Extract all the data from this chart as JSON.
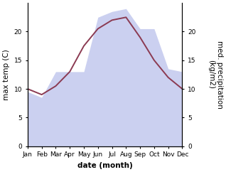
{
  "months": [
    "Jan",
    "Feb",
    "Mar",
    "Apr",
    "May",
    "Jun",
    "Jul",
    "Aug",
    "Sep",
    "Oct",
    "Nov",
    "Dec"
  ],
  "month_indices": [
    1,
    2,
    3,
    4,
    5,
    6,
    7,
    8,
    9,
    10,
    11,
    12
  ],
  "temp_max": [
    10.0,
    9.0,
    10.5,
    13.0,
    17.5,
    20.5,
    22.0,
    22.5,
    19.0,
    15.0,
    12.0,
    10.0
  ],
  "precipitation": [
    9.5,
    8.5,
    13.0,
    13.0,
    13.0,
    22.5,
    23.5,
    24.0,
    20.5,
    20.5,
    13.5,
    13.0
  ],
  "ylim": [
    0,
    25
  ],
  "yticks_left": [
    0,
    5,
    10,
    15,
    20
  ],
  "yticks_right": [
    0,
    5,
    10,
    15,
    20
  ],
  "ylabel_left": "max temp (C)",
  "ylabel_right": "med. precipitation\n(kg/m2)",
  "xlabel": "date (month)",
  "fill_color": "#b0b8e8",
  "fill_alpha": 0.65,
  "line_color": "#8b3a52",
  "line_width": 1.4,
  "background_color": "#ffffff",
  "label_fontsize": 7.5,
  "tick_fontsize": 6.5
}
